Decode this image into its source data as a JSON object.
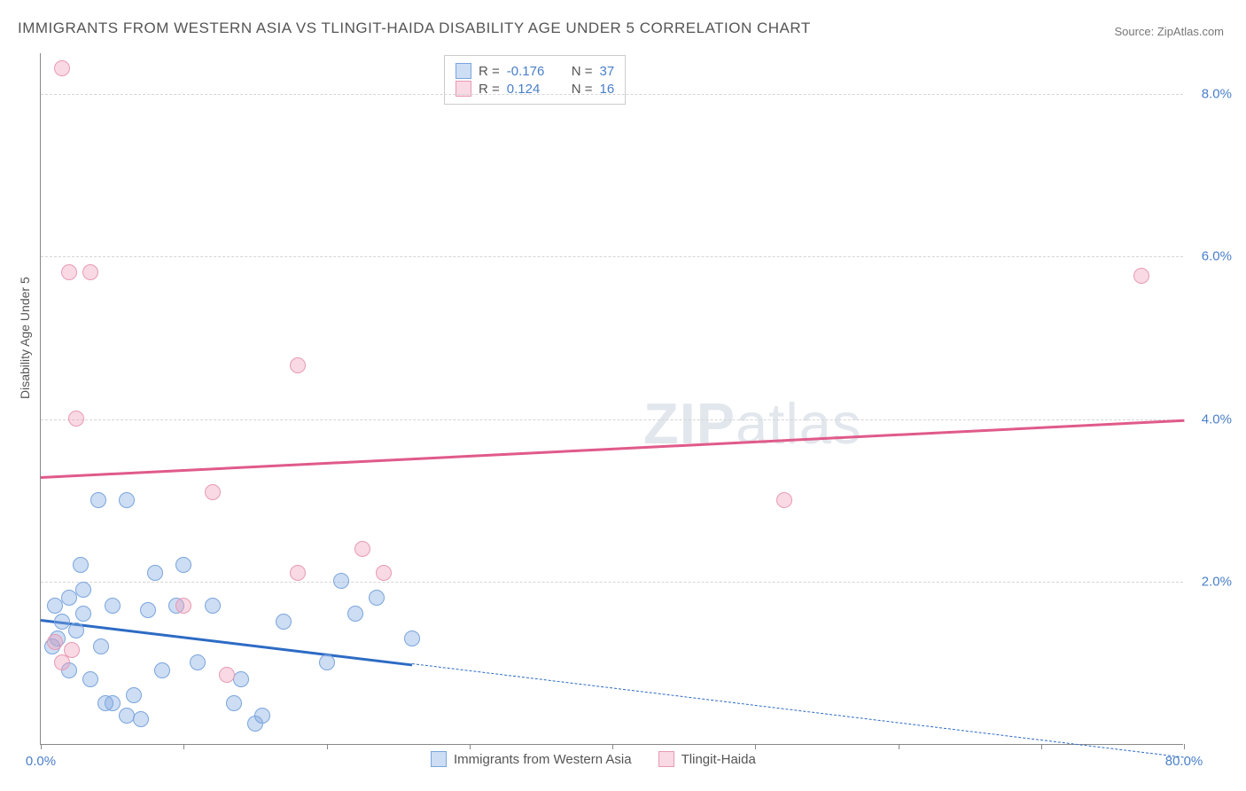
{
  "title": "IMMIGRANTS FROM WESTERN ASIA VS TLINGIT-HAIDA DISABILITY AGE UNDER 5 CORRELATION CHART",
  "source": "Source: ZipAtlas.com",
  "y_axis_label": "Disability Age Under 5",
  "watermark_bold": "ZIP",
  "watermark_rest": "atlas",
  "chart": {
    "type": "scatter",
    "xlim": [
      0,
      80
    ],
    "ylim": [
      0,
      8.5
    ],
    "x_ticks": [
      0,
      10,
      20,
      30,
      40,
      50,
      60,
      70,
      80
    ],
    "x_tick_labels_visible": {
      "0": "0.0%",
      "80": "80.0%"
    },
    "y_ticks": [
      2,
      4,
      6,
      8
    ],
    "y_tick_labels": [
      "2.0%",
      "4.0%",
      "6.0%",
      "8.0%"
    ],
    "grid_color": "#d5d5d5",
    "background_color": "#ffffff",
    "axis_label_color": "#4a7fc9",
    "point_radius": 9,
    "series": [
      {
        "name": "Immigrants from Western Asia",
        "fill": "rgba(130,170,225,0.4)",
        "stroke": "#7aa5dd",
        "trend_color": "#2d6bc4",
        "trend_solid": [
          0,
          1.55,
          26,
          1.0
        ],
        "trend_dashed": [
          26,
          1.0,
          80,
          -0.15
        ],
        "R": "-0.176",
        "N": "37",
        "points": [
          [
            1.0,
            1.7
          ],
          [
            1.5,
            1.5
          ],
          [
            2.0,
            1.8
          ],
          [
            3.0,
            1.9
          ],
          [
            0.8,
            1.2
          ],
          [
            1.2,
            1.3
          ],
          [
            2.5,
            1.4
          ],
          [
            4.0,
            3.0
          ],
          [
            6.0,
            3.0
          ],
          [
            3.0,
            1.6
          ],
          [
            5.0,
            1.7
          ],
          [
            8.0,
            2.1
          ],
          [
            7.5,
            1.65
          ],
          [
            2.0,
            0.9
          ],
          [
            3.5,
            0.8
          ],
          [
            5.0,
            0.5
          ],
          [
            6.0,
            0.35
          ],
          [
            7.0,
            0.3
          ],
          [
            4.5,
            0.5
          ],
          [
            9.5,
            1.7
          ],
          [
            12.0,
            1.7
          ],
          [
            11.0,
            1.0
          ],
          [
            13.5,
            0.5
          ],
          [
            14.0,
            0.8
          ],
          [
            15.0,
            0.25
          ],
          [
            10.0,
            2.2
          ],
          [
            15.5,
            0.35
          ],
          [
            17.0,
            1.5
          ],
          [
            20.0,
            1.0
          ],
          [
            21.0,
            2.0
          ],
          [
            22.0,
            1.6
          ],
          [
            23.5,
            1.8
          ],
          [
            26.0,
            1.3
          ],
          [
            2.8,
            2.2
          ],
          [
            4.2,
            1.2
          ],
          [
            6.5,
            0.6
          ],
          [
            8.5,
            0.9
          ]
        ]
      },
      {
        "name": "Tlingit-Haida",
        "fill": "rgba(240,160,185,0.4)",
        "stroke": "#e89ab5",
        "trend_color": "#e05a8a",
        "trend_solid": [
          0,
          3.3,
          80,
          4.0
        ],
        "trend_dashed": null,
        "R": "0.124",
        "N": "16",
        "points": [
          [
            1.5,
            8.3
          ],
          [
            2.0,
            5.8
          ],
          [
            3.5,
            5.8
          ],
          [
            2.5,
            4.0
          ],
          [
            77.0,
            5.75
          ],
          [
            18.0,
            4.65
          ],
          [
            12.0,
            3.1
          ],
          [
            52.0,
            3.0
          ],
          [
            22.5,
            2.4
          ],
          [
            10.0,
            1.7
          ],
          [
            18.0,
            2.1
          ],
          [
            24.0,
            2.1
          ],
          [
            13.0,
            0.85
          ],
          [
            1.0,
            1.25
          ],
          [
            1.5,
            1.0
          ],
          [
            2.2,
            1.15
          ]
        ]
      }
    ]
  },
  "legend_top": {
    "rows": [
      {
        "swatch_fill": "rgba(130,170,225,0.4)",
        "swatch_stroke": "#7aa5dd",
        "r_label": "R =",
        "r_val": "-0.176",
        "n_label": "N =",
        "n_val": "37"
      },
      {
        "swatch_fill": "rgba(240,160,185,0.4)",
        "swatch_stroke": "#e89ab5",
        "r_label": "R =",
        "r_val": "0.124",
        "n_label": "N =",
        "n_val": "16"
      }
    ]
  },
  "legend_bottom": {
    "items": [
      {
        "swatch_fill": "rgba(130,170,225,0.4)",
        "swatch_stroke": "#7aa5dd",
        "label": "Immigrants from Western Asia"
      },
      {
        "swatch_fill": "rgba(240,160,185,0.4)",
        "swatch_stroke": "#e89ab5",
        "label": "Tlingit-Haida"
      }
    ]
  }
}
